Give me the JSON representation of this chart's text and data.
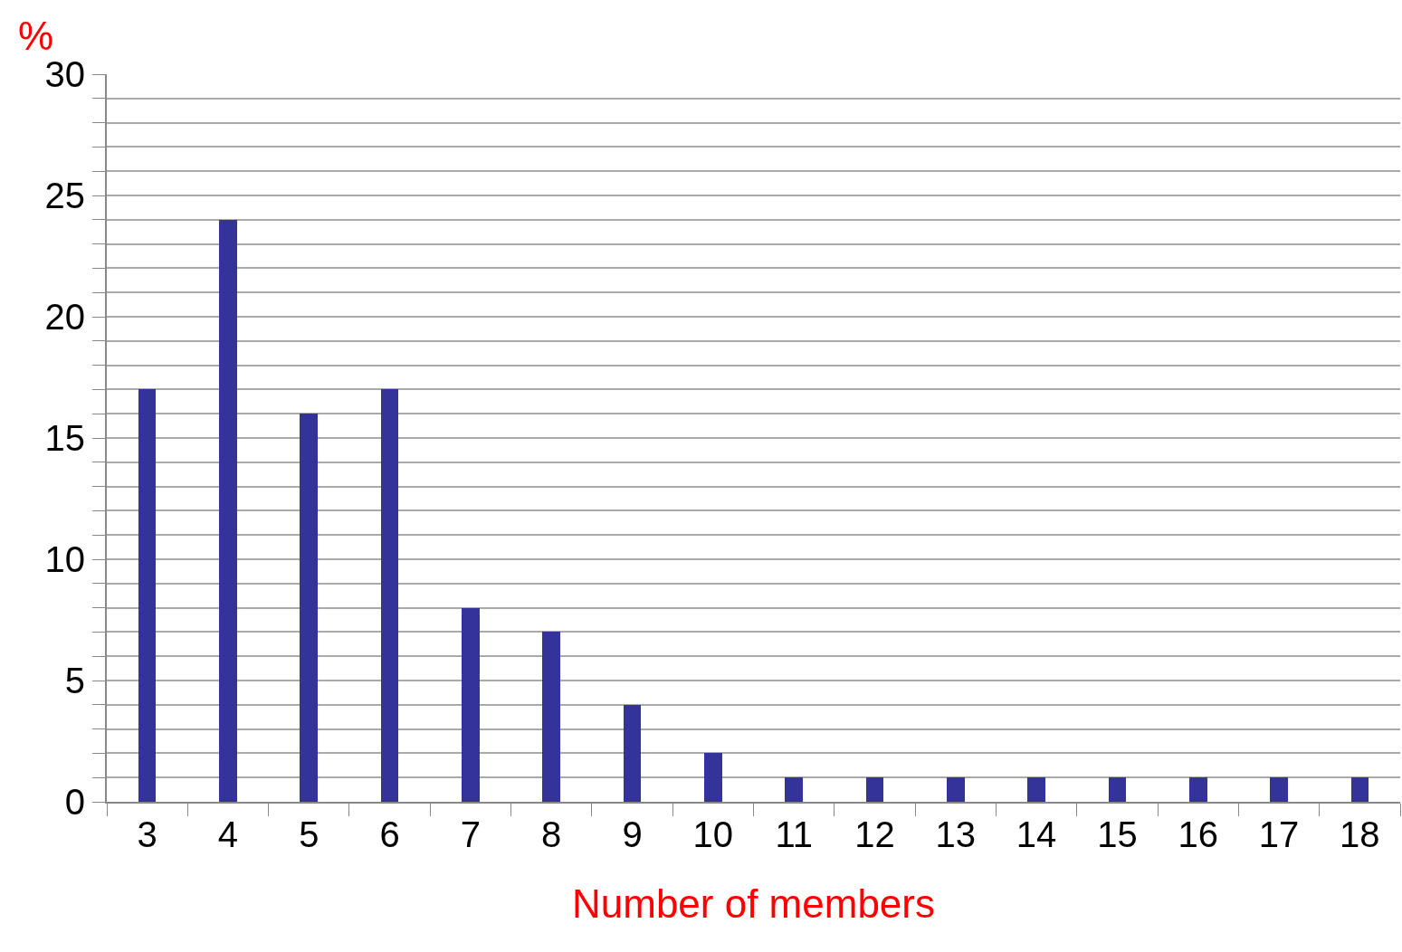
{
  "chart_data": {
    "type": "bar",
    "xlabel": "Number of members",
    "ylabel": "%",
    "categories": [
      "3",
      "4",
      "5",
      "6",
      "7",
      "8",
      "9",
      "10",
      "11",
      "12",
      "13",
      "14",
      "15",
      "16",
      "17",
      "18"
    ],
    "values": [
      17,
      24,
      16,
      17,
      8,
      7,
      4,
      2,
      1,
      1,
      1,
      1,
      1,
      1,
      1,
      1
    ],
    "color": "#333399",
    "ylim": [
      0,
      30
    ],
    "yticks": [
      0,
      {
        "value": 1,
        "label": null
      },
      {
        "value": 2,
        "label": null
      },
      {
        "value": 3,
        "label": null
      },
      {
        "value": 4,
        "label": null
      },
      5,
      {
        "value": 6,
        "label": null
      },
      {
        "value": 7,
        "label": null
      },
      {
        "value": 8,
        "label": null
      },
      {
        "value": 9,
        "label": null
      },
      10,
      {
        "value": 11,
        "label": null
      },
      {
        "value": 12,
        "label": null
      },
      {
        "value": 13,
        "label": null
      },
      {
        "value": 14,
        "label": null
      },
      15,
      {
        "value": 16,
        "label": null
      },
      {
        "value": 17,
        "label": null
      },
      {
        "value": 18,
        "label": null
      },
      {
        "value": 19,
        "label": null
      },
      20,
      {
        "value": 21,
        "label": null
      },
      {
        "value": 22,
        "label": null
      },
      {
        "value": 23,
        "label": null
      },
      {
        "value": 24,
        "label": null
      },
      25,
      {
        "value": 26,
        "label": null
      },
      {
        "value": 27,
        "label": null
      },
      {
        "value": 28,
        "label": null
      },
      {
        "value": 29,
        "label": null
      },
      30
    ],
    "grid": "y",
    "legend": false
  }
}
